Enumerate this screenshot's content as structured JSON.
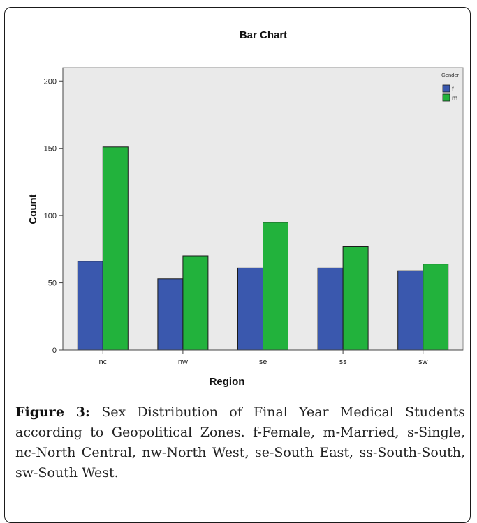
{
  "chart_data": {
    "type": "bar",
    "title": "Bar Chart",
    "xlabel": "Region",
    "ylabel": "Count",
    "categories": [
      "nc",
      "nw",
      "se",
      "ss",
      "sw"
    ],
    "series": [
      {
        "name": "f",
        "values": [
          66,
          53,
          61,
          61,
          59
        ],
        "color": "#3a58ae"
      },
      {
        "name": "m",
        "values": [
          151,
          70,
          95,
          77,
          64
        ],
        "color": "#22b23c"
      }
    ],
    "ylim": [
      0,
      210
    ],
    "yticks": [
      0,
      50,
      100,
      150,
      200
    ],
    "grid": false,
    "legend": {
      "title": "Gender",
      "position": "top-right"
    },
    "plot_background": "#eaeaea"
  },
  "caption": {
    "label": "Figure 3:",
    "text": "Sex Distribution of Final Year Medical Students according to Geopolitical Zones. f-Female, m-Married, s-Single, nc-North Central, nw-North West, se-South East, ss-South-South, sw-South West."
  }
}
